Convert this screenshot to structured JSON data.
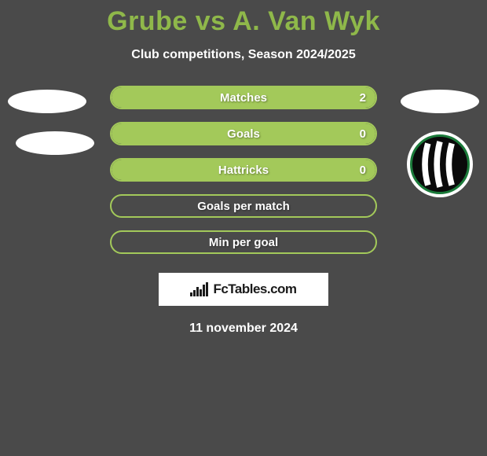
{
  "title": "Grube vs A. Van Wyk",
  "subtitle": "Club competitions, Season 2024/2025",
  "date": "11 november 2024",
  "logo_text": "FcTables.com",
  "colors": {
    "background": "#4a4a4a",
    "accent_title": "#8fb84a",
    "bar_fill": "#a3c95a",
    "bar_border": "#a3c95a",
    "text_white": "#ffffff",
    "logo_bg": "#ffffff",
    "logo_text": "#1a1a1a"
  },
  "bars": [
    {
      "label": "Matches",
      "value": "2",
      "fill_pct": 100
    },
    {
      "label": "Goals",
      "value": "0",
      "fill_pct": 100
    },
    {
      "label": "Hattricks",
      "value": "0",
      "fill_pct": 100
    },
    {
      "label": "Goals per match",
      "value": "",
      "fill_pct": 0
    },
    {
      "label": "Min per goal",
      "value": "",
      "fill_pct": 0
    }
  ],
  "club_badge_right": {
    "bg": "#0a0a0a",
    "stripe_light": "#ffffff",
    "stripe_dark": "#0a0a0a",
    "ring": "#1b7a3a"
  }
}
